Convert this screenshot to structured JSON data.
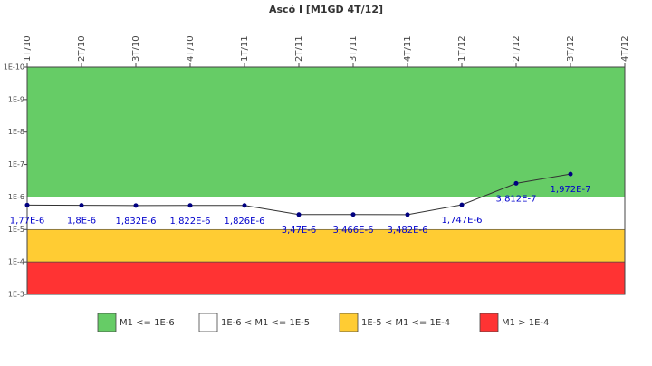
{
  "chart_data": {
    "type": "line",
    "title": "Ascó I [M1GD 4T/12]",
    "categories": [
      "1T/10",
      "2T/10",
      "3T/10",
      "4T/10",
      "1T/11",
      "2T/11",
      "3T/11",
      "4T/11",
      "1T/12",
      "2T/12",
      "3T/12",
      "4T/12"
    ],
    "series": [
      {
        "name": "M1GD",
        "color": "#333333",
        "marker_color": "#000080",
        "values": [
          1.77e-06,
          1.8e-06,
          1.832e-06,
          1.822e-06,
          1.826e-06,
          3.47e-06,
          3.466e-06,
          3.482e-06,
          1.747e-06,
          3.812e-07,
          1.972e-07,
          null
        ],
        "value_labels": [
          "1,77E-6",
          "1,8E-6",
          "1,832E-6",
          "1,822E-6",
          "1,826E-6",
          "3,47E-6",
          "3,466E-6",
          "3,482E-6",
          "1,747E-6",
          "3,812E-7",
          "1,972E-7",
          null
        ]
      }
    ],
    "bands": [
      {
        "name": "M1 <= 1E-6",
        "color": "#66cc66",
        "from": 1e-10,
        "to": 1e-06
      },
      {
        "name": "1E-6 < M1 <= 1E-5",
        "color": "#ffffff",
        "from": 1e-06,
        "to": 1e-05
      },
      {
        "name": "1E-5 < M1 <= 1E-4",
        "color": "#ffcc33",
        "from": 1e-05,
        "to": 0.0001
      },
      {
        "name": "M1 > 1E-4",
        "color": "#ff3333",
        "from": 0.0001,
        "to": 0.001
      }
    ],
    "yscale": "log",
    "y_reversed": true,
    "ylim": [
      1e-10,
      0.001
    ],
    "yticks": [
      {
        "value": 1e-10,
        "label": "1E-10"
      },
      {
        "value": 1e-09,
        "label": "1E-9"
      },
      {
        "value": 1e-08,
        "label": "1E-8"
      },
      {
        "value": 1e-07,
        "label": "1E-7"
      },
      {
        "value": 1e-06,
        "label": "1E-6"
      },
      {
        "value": 1e-05,
        "label": "1E-5"
      },
      {
        "value": 0.0001,
        "label": "1E-4"
      },
      {
        "value": 0.001,
        "label": "1E-3"
      }
    ]
  }
}
